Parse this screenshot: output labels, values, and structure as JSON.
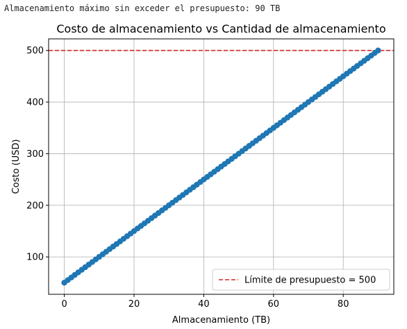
{
  "output": {
    "text": "Almacenamiento máximo sin exceder el presupuesto: 90 TB"
  },
  "chart_data": {
    "type": "line",
    "title": "Costo de almacenamiento vs Cantidad de almacenamiento",
    "xlabel": "Almacenamiento (TB)",
    "ylabel": "Costo (USD)",
    "xlim": [
      -4.5,
      94.5
    ],
    "ylim": [
      27.5,
      522.5
    ],
    "xticks": [
      0,
      20,
      40,
      60,
      80
    ],
    "yticks": [
      100,
      200,
      300,
      400,
      500
    ],
    "grid": true,
    "legend_position": "lower-right",
    "series": [
      {
        "formula": "cost = 50 + 5 * storage",
        "x_start": 0,
        "x_end": 90,
        "x_step": 1,
        "marker": "circle",
        "color": "#1f77b4"
      }
    ],
    "reference_line": {
      "label": "Límite de presupuesto = 500",
      "y": 500,
      "style": "dashed",
      "color": "#d62728"
    }
  }
}
